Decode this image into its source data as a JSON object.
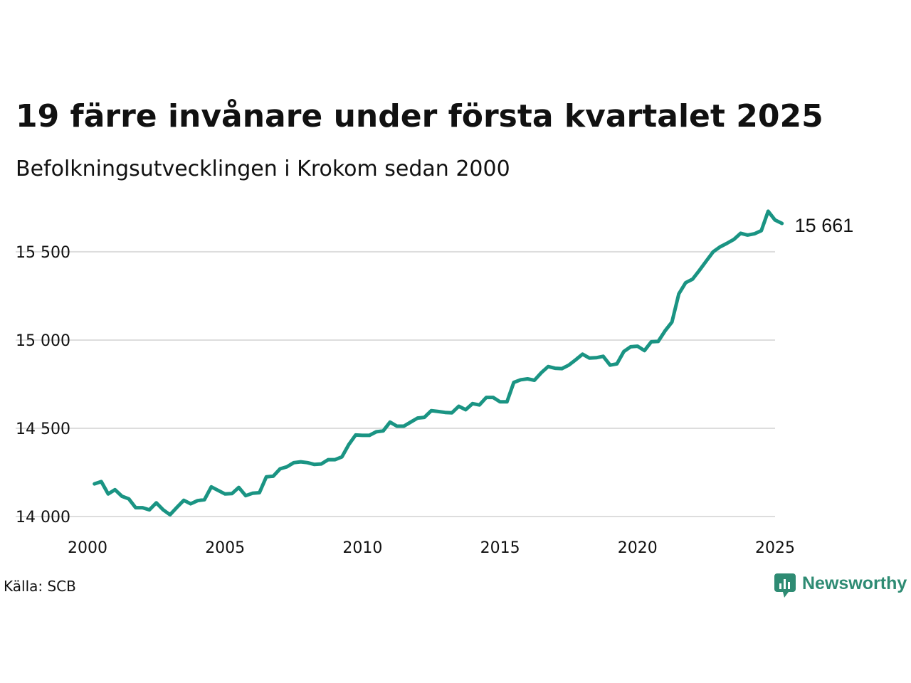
{
  "colors": {
    "line": "#1a9483",
    "grid": "#dddddd",
    "text": "#111111",
    "brand": "#2e8b73"
  },
  "footer": {
    "source": "Källa: SCB",
    "brand": "Newsworthy",
    "brand_icon": "bar-chart-speech-bubble-icon"
  },
  "chart_data": {
    "type": "line",
    "title": "19 färre invånare under första kvartalet 2025",
    "subtitle": "Befolkningsutvecklingen i Krokom sedan 2000",
    "xlabel": "",
    "ylabel": "",
    "xlim": [
      2000,
      2025.25
    ],
    "ylim": [
      14000,
      15661
    ],
    "x_ticks": [
      2000,
      2005,
      2010,
      2015,
      2020,
      2025
    ],
    "x_tick_labels": [
      "2000",
      "2005",
      "2010",
      "2015",
      "2020",
      "2025"
    ],
    "y_ticks": [
      14000,
      14500,
      15000,
      15500
    ],
    "y_tick_labels": [
      "14 000",
      "14 500",
      "15 000",
      "15 500"
    ],
    "grid": true,
    "legend": "none",
    "end_label": "15 661",
    "series": [
      {
        "x": [
          2000.25,
          2000.5,
          2000.75,
          2001.0,
          2001.25,
          2001.5,
          2001.75,
          2002.0,
          2002.25,
          2002.5,
          2002.75,
          2003.0,
          2003.25,
          2003.5,
          2003.75,
          2004.0,
          2004.25,
          2004.5,
          2004.75,
          2005.0,
          2005.25,
          2005.5,
          2005.75,
          2006.0,
          2006.25,
          2006.5,
          2006.75,
          2007.0,
          2007.25,
          2007.5,
          2007.75,
          2008.0,
          2008.25,
          2008.5,
          2008.75,
          2009.0,
          2009.25,
          2009.5,
          2009.75,
          2010.0,
          2010.25,
          2010.5,
          2010.75,
          2011.0,
          2011.25,
          2011.5,
          2011.75,
          2012.0,
          2012.25,
          2012.5,
          2012.75,
          2013.0,
          2013.25,
          2013.5,
          2013.75,
          2014.0,
          2014.25,
          2014.5,
          2014.75,
          2015.0,
          2015.25,
          2015.5,
          2015.75,
          2016.0,
          2016.25,
          2016.5,
          2016.75,
          2017.0,
          2017.25,
          2017.5,
          2017.75,
          2018.0,
          2018.25,
          2018.5,
          2018.75,
          2019.0,
          2019.25,
          2019.5,
          2019.75,
          2020.0,
          2020.25,
          2020.5,
          2020.75,
          2021.0,
          2021.25,
          2021.5,
          2021.75,
          2022.0,
          2022.25,
          2022.5,
          2022.75,
          2023.0,
          2023.25,
          2023.5,
          2023.75,
          2024.0,
          2024.25,
          2024.5,
          2024.75,
          2025.0,
          2025.25
        ],
        "values": [
          14185,
          14198,
          14128,
          14152,
          14115,
          14100,
          14050,
          14050,
          14038,
          14078,
          14038,
          14010,
          14052,
          14092,
          14072,
          14090,
          14095,
          14168,
          14148,
          14128,
          14130,
          14165,
          14118,
          14132,
          14135,
          14225,
          14228,
          14270,
          14282,
          14305,
          14310,
          14305,
          14295,
          14298,
          14322,
          14322,
          14338,
          14408,
          14462,
          14460,
          14460,
          14480,
          14485,
          14535,
          14512,
          14512,
          14535,
          14558,
          14562,
          14600,
          14595,
          14590,
          14588,
          14625,
          14605,
          14640,
          14632,
          14675,
          14675,
          14650,
          14650,
          14760,
          14775,
          14780,
          14772,
          14815,
          14850,
          14840,
          14838,
          14858,
          14888,
          14920,
          14898,
          14900,
          14908,
          14858,
          14865,
          14935,
          14962,
          14965,
          14940,
          14990,
          14992,
          15052,
          15102,
          15262,
          15325,
          15345,
          15395,
          15448,
          15500,
          15528,
          15548,
          15570,
          15605,
          15595,
          15602,
          15620,
          15730,
          15680,
          15661
        ]
      }
    ]
  }
}
